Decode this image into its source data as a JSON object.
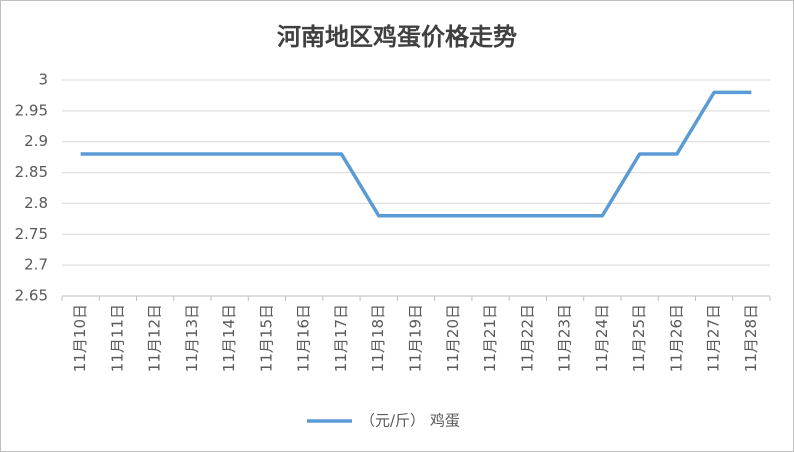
{
  "chart_data": {
    "type": "line",
    "title": "河南地区鸡蛋价格走势",
    "categories": [
      "11月10日",
      "11月11日",
      "11月12日",
      "11月13日",
      "11月14日",
      "11月15日",
      "11月16日",
      "11月17日",
      "11月18日",
      "11月19日",
      "11月20日",
      "11月21日",
      "11月22日",
      "11月23日",
      "11月24日",
      "11月25日",
      "11月26日",
      "11月27日",
      "11月28日"
    ],
    "series": [
      {
        "name": "（元/斤） 鸡蛋",
        "color": "#5b9bd5",
        "values": [
          2.88,
          2.88,
          2.88,
          2.88,
          2.88,
          2.88,
          2.88,
          2.88,
          2.78,
          2.78,
          2.78,
          2.78,
          2.78,
          2.78,
          2.78,
          2.88,
          2.88,
          2.98,
          2.98
        ]
      }
    ],
    "ylim": [
      2.65,
      3
    ],
    "yticks": [
      2.65,
      2.7,
      2.75,
      2.8,
      2.85,
      2.9,
      2.95,
      3
    ],
    "grid": true,
    "legend": "bottom"
  }
}
